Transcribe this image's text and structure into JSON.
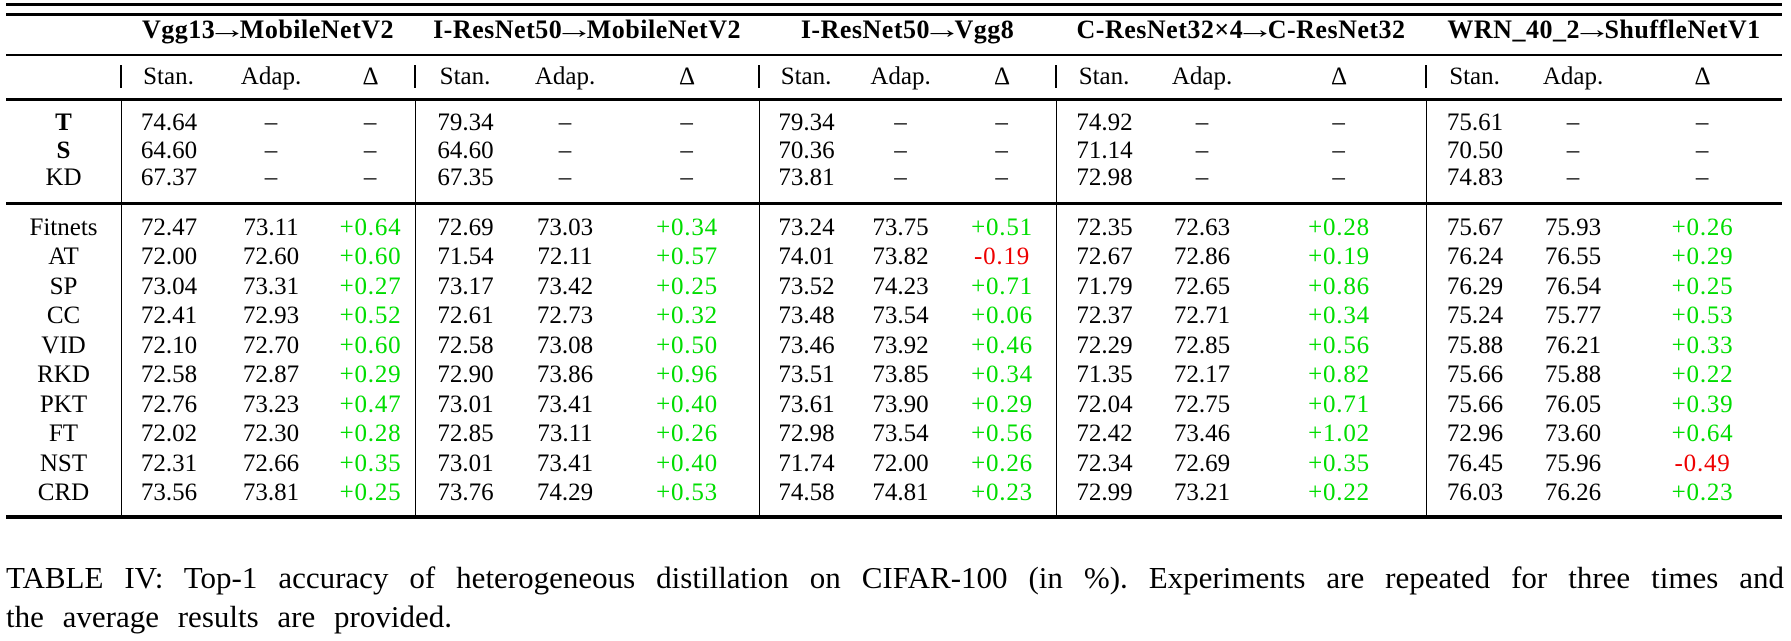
{
  "table": {
    "col_groups": [
      {
        "label": "Vgg13→MobileNetV2"
      },
      {
        "label": "I-ResNet50→MobileNetV2"
      },
      {
        "label": "I-ResNet50→Vgg8"
      },
      {
        "label": "C-ResNet32×4→C-ResNet32"
      },
      {
        "label": "WRN_40_2→ShuffleNetV1"
      }
    ],
    "sub_headers": [
      "Stan.",
      "Adap.",
      "Δ"
    ],
    "baseline_rows": [
      {
        "label": "T",
        "bold": true,
        "cells": [
          [
            "74.64",
            "–",
            "–"
          ],
          [
            "79.34",
            "–",
            "–"
          ],
          [
            "79.34",
            "–",
            "–"
          ],
          [
            "74.92",
            "–",
            "–"
          ],
          [
            "75.61",
            "–",
            "–"
          ]
        ]
      },
      {
        "label": "S",
        "bold": true,
        "cells": [
          [
            "64.60",
            "–",
            "–"
          ],
          [
            "64.60",
            "–",
            "–"
          ],
          [
            "70.36",
            "–",
            "–"
          ],
          [
            "71.14",
            "–",
            "–"
          ],
          [
            "70.50",
            "–",
            "–"
          ]
        ]
      },
      {
        "label": "KD",
        "bold": false,
        "cells": [
          [
            "67.37",
            "–",
            "–"
          ],
          [
            "67.35",
            "–",
            "–"
          ],
          [
            "73.81",
            "–",
            "–"
          ],
          [
            "72.98",
            "–",
            "–"
          ],
          [
            "74.83",
            "–",
            "–"
          ]
        ]
      }
    ],
    "method_rows": [
      {
        "label": "Fitnets",
        "cells": [
          [
            "72.47",
            "73.11",
            "+0.64"
          ],
          [
            "72.69",
            "73.03",
            "+0.34"
          ],
          [
            "73.24",
            "73.75",
            "+0.51"
          ],
          [
            "72.35",
            "72.63",
            "+0.28"
          ],
          [
            "75.67",
            "75.93",
            "+0.26"
          ]
        ]
      },
      {
        "label": "AT",
        "cells": [
          [
            "72.00",
            "72.60",
            "+0.60"
          ],
          [
            "71.54",
            "72.11",
            "+0.57"
          ],
          [
            "74.01",
            "73.82",
            "-0.19"
          ],
          [
            "72.67",
            "72.86",
            "+0.19"
          ],
          [
            "76.24",
            "76.55",
            "+0.29"
          ]
        ]
      },
      {
        "label": "SP",
        "cells": [
          [
            "73.04",
            "73.31",
            "+0.27"
          ],
          [
            "73.17",
            "73.42",
            "+0.25"
          ],
          [
            "73.52",
            "74.23",
            "+0.71"
          ],
          [
            "71.79",
            "72.65",
            "+0.86"
          ],
          [
            "76.29",
            "76.54",
            "+0.25"
          ]
        ]
      },
      {
        "label": "CC",
        "cells": [
          [
            "72.41",
            "72.93",
            "+0.52"
          ],
          [
            "72.61",
            "72.73",
            "+0.32"
          ],
          [
            "73.48",
            "73.54",
            "+0.06"
          ],
          [
            "72.37",
            "72.71",
            "+0.34"
          ],
          [
            "75.24",
            "75.77",
            "+0.53"
          ]
        ]
      },
      {
        "label": "VID",
        "cells": [
          [
            "72.10",
            "72.70",
            "+0.60"
          ],
          [
            "72.58",
            "73.08",
            "+0.50"
          ],
          [
            "73.46",
            "73.92",
            "+0.46"
          ],
          [
            "72.29",
            "72.85",
            "+0.56"
          ],
          [
            "75.88",
            "76.21",
            "+0.33"
          ]
        ]
      },
      {
        "label": "RKD",
        "cells": [
          [
            "72.58",
            "72.87",
            "+0.29"
          ],
          [
            "72.90",
            "73.86",
            "+0.96"
          ],
          [
            "73.51",
            "73.85",
            "+0.34"
          ],
          [
            "71.35",
            "72.17",
            "+0.82"
          ],
          [
            "75.66",
            "75.88",
            "+0.22"
          ]
        ]
      },
      {
        "label": "PKT",
        "cells": [
          [
            "72.76",
            "73.23",
            "+0.47"
          ],
          [
            "73.01",
            "73.41",
            "+0.40"
          ],
          [
            "73.61",
            "73.90",
            "+0.29"
          ],
          [
            "72.04",
            "72.75",
            "+0.71"
          ],
          [
            "75.66",
            "76.05",
            "+0.39"
          ]
        ]
      },
      {
        "label": "FT",
        "cells": [
          [
            "72.02",
            "72.30",
            "+0.28"
          ],
          [
            "72.85",
            "73.11",
            "+0.26"
          ],
          [
            "72.98",
            "73.54",
            "+0.56"
          ],
          [
            "72.42",
            "73.46",
            "+1.02"
          ],
          [
            "72.96",
            "73.60",
            "+0.64"
          ]
        ]
      },
      {
        "label": "NST",
        "cells": [
          [
            "72.31",
            "72.66",
            "+0.35"
          ],
          [
            "73.01",
            "73.41",
            "+0.40"
          ],
          [
            "71.74",
            "72.00",
            "+0.26"
          ],
          [
            "72.34",
            "72.69",
            "+0.35"
          ],
          [
            "76.45",
            "75.96",
            "-0.49"
          ]
        ]
      },
      {
        "label": "CRD",
        "cells": [
          [
            "73.56",
            "73.81",
            "+0.25"
          ],
          [
            "73.76",
            "74.29",
            "+0.53"
          ],
          [
            "74.58",
            "74.81",
            "+0.23"
          ],
          [
            "72.99",
            "73.21",
            "+0.22"
          ],
          [
            "76.03",
            "76.26",
            "+0.23"
          ]
        ]
      }
    ]
  },
  "caption": {
    "line1": "TABLE IV: Top-1 accuracy of heterogeneous distillation on CIFAR-100 (in %). Experiments are repeated for three times and",
    "line2": "the average results are provided."
  },
  "colors": {
    "positive": "#00dd00",
    "negative": "#ee0000"
  }
}
